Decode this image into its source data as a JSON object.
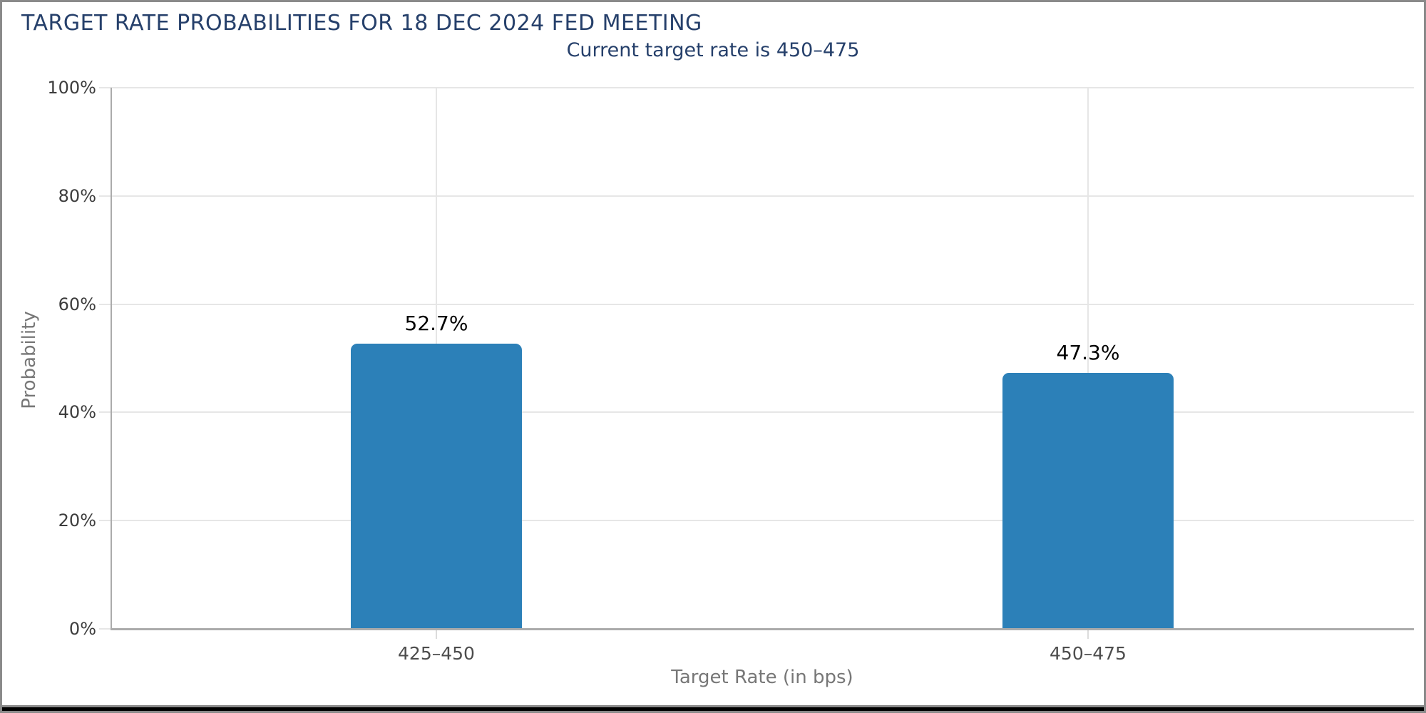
{
  "header": {
    "title": "TARGET RATE PROBABILITIES FOR 18 DEC 2024 FED MEETING",
    "subtitle": "Current target rate is 450–475"
  },
  "chart_data": {
    "type": "bar",
    "title": "TARGET RATE PROBABILITIES FOR 18 DEC 2024 FED MEETING",
    "subtitle": "Current target rate is 450–475",
    "categories": [
      "425–450",
      "450–475"
    ],
    "values": [
      52.7,
      47.3
    ],
    "value_labels": [
      "52.7%",
      "47.3%"
    ],
    "xlabel": "Target Rate (in bps)",
    "ylabel": "Probability",
    "ylim": [
      0,
      100
    ],
    "ytick_values": [
      0,
      20,
      40,
      60,
      80,
      100
    ],
    "ytick_labels": [
      "0%",
      "20%",
      "40%",
      "60%",
      "80%",
      "100%"
    ],
    "grid": "on",
    "legend": "none"
  },
  "colors": {
    "title_text": "#26406b",
    "subtitle_text": "#26406b",
    "bar_fill": "#2c80b8",
    "gridline": "#e6e6e6",
    "axis_line": "#ababab",
    "ytick_text": "#3d3d3d",
    "xtick_text": "#4d4d4d",
    "value_label_text": "#000000",
    "axis_title_text": "#777777",
    "frame_border": "#8a8a8a",
    "bottom_strip": "#000000"
  }
}
